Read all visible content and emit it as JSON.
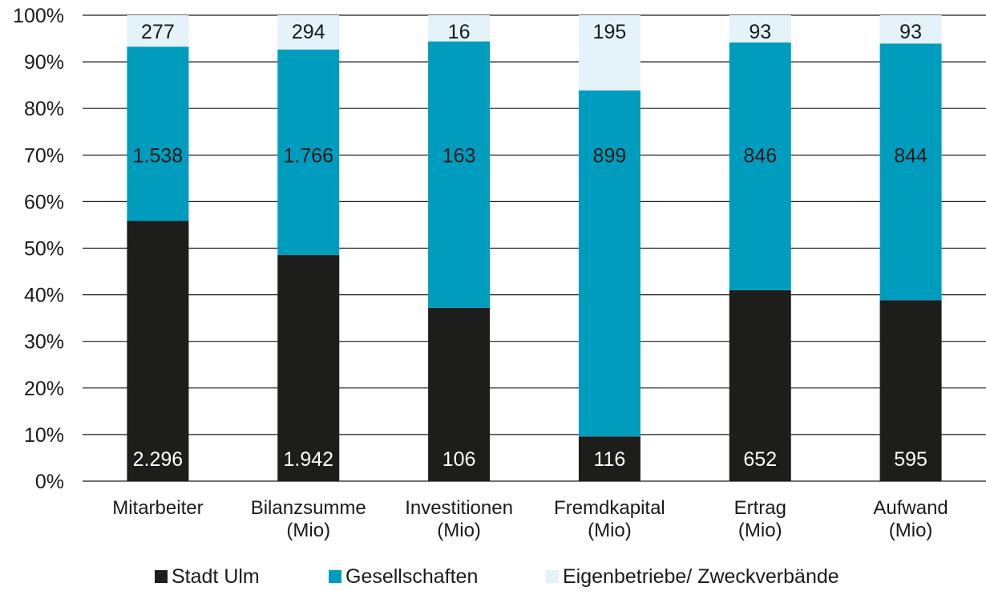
{
  "chart_data": {
    "type": "bar",
    "stacked": "percent",
    "categories": [
      [
        "Mitarbeiter"
      ],
      [
        "Bilanzsumme",
        "(Mio)"
      ],
      [
        "Investitionen",
        "(Mio)"
      ],
      [
        "Fremdkapital",
        "(Mio)"
      ],
      [
        "Ertrag",
        "(Mio)"
      ],
      [
        "Aufwand",
        "(Mio)"
      ]
    ],
    "series": [
      {
        "name": "Stadt Ulm",
        "color": "#1d1d1b",
        "label_color": "#ffffff",
        "values": [
          2296,
          1942,
          106,
          116,
          652,
          595
        ],
        "labels": [
          "2.296",
          "1.942",
          "106",
          "116",
          "652",
          "595"
        ]
      },
      {
        "name": "Gesellschaften",
        "color": "#009cbd",
        "label_color": "#1a1a1a",
        "values": [
          1538,
          1766,
          163,
          899,
          846,
          844
        ],
        "labels": [
          "1.538",
          "1.766",
          "163",
          "899",
          "846",
          "844"
        ]
      },
      {
        "name": "Eigenbetriebe/ Zweckverbände",
        "color": "#e3f3f9",
        "label_color": "#1a1a1a",
        "values": [
          277,
          294,
          16,
          195,
          93,
          93
        ],
        "labels": [
          "277",
          "294",
          "16",
          "195",
          "93",
          "93"
        ]
      }
    ],
    "yticks": [
      "0%",
      "10%",
      "20%",
      "30%",
      "40%",
      "50%",
      "60%",
      "70%",
      "80%",
      "90%",
      "100%"
    ],
    "ylim": [
      0,
      100
    ],
    "grid": true,
    "legend_position": "bottom"
  }
}
